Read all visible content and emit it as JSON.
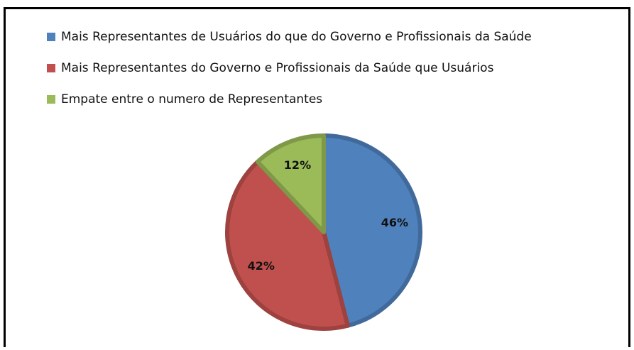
{
  "chart_data": {
    "type": "pie",
    "categories": [
      "Mais Representantes de Usuários do que do Governo e Profissionais da Saúde",
      "Mais Representantes do Governo e Profissionais da Saúde que Usuários",
      "Empate entre o numero de Representantes"
    ],
    "values": [
      46,
      42,
      12
    ],
    "value_labels": [
      "46%",
      "42%",
      "12%"
    ],
    "colors": [
      "#4f81bd",
      "#c0504d",
      "#9bbb59"
    ],
    "legend": "top"
  }
}
